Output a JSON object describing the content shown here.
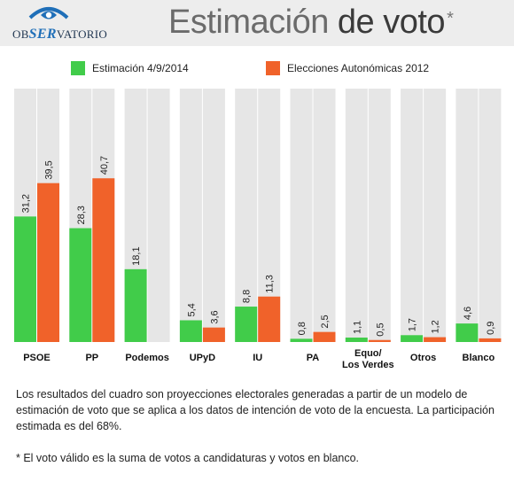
{
  "header": {
    "logo": {
      "part_a": "OB",
      "part_b": "SER",
      "part_c": "VATORIO"
    },
    "title": {
      "light": "Estimación",
      "bold": "de voto",
      "mark": "*"
    }
  },
  "colors": {
    "series1": "#41cc4a",
    "series2": "#f0622a",
    "column_bg": "#e6e6e6"
  },
  "chart_data": {
    "type": "bar",
    "categories": [
      "PSOE",
      "PP",
      "Podemos",
      "UPyD",
      "IU",
      "PA",
      "Equo/\nLos Verdes",
      "Otros",
      "Blanco"
    ],
    "series": [
      {
        "name": "Estimación 4/9/2014",
        "values": [
          31.2,
          28.3,
          18.1,
          5.4,
          8.8,
          0.8,
          1.1,
          1.7,
          4.6
        ],
        "labels": [
          "31,2",
          "28,3",
          "18,1",
          "5,4",
          "8,8",
          "0,8",
          "1,1",
          "1,7",
          "4,6"
        ]
      },
      {
        "name": "Elecciones Autonómicas 2012",
        "values": [
          39.5,
          40.7,
          null,
          3.6,
          11.3,
          2.5,
          0.5,
          1.2,
          0.9
        ],
        "labels": [
          "39,5",
          "40,7",
          "",
          "3,6",
          "11,3",
          "2,5",
          "0,5",
          "1,2",
          "0,9"
        ]
      }
    ],
    "ylim": [
      0,
      63
    ],
    "legend_position": "top",
    "grid": false
  },
  "footnotes": {
    "main": "Los resultados del cuadro son proyecciones electorales generadas a partir de un modelo de estimación de voto que se aplica a los datos de intención de voto de la encuesta. La participación estimada es del 68%.",
    "note": "* El voto válido es la suma de votos a candidaturas y votos en blanco."
  }
}
